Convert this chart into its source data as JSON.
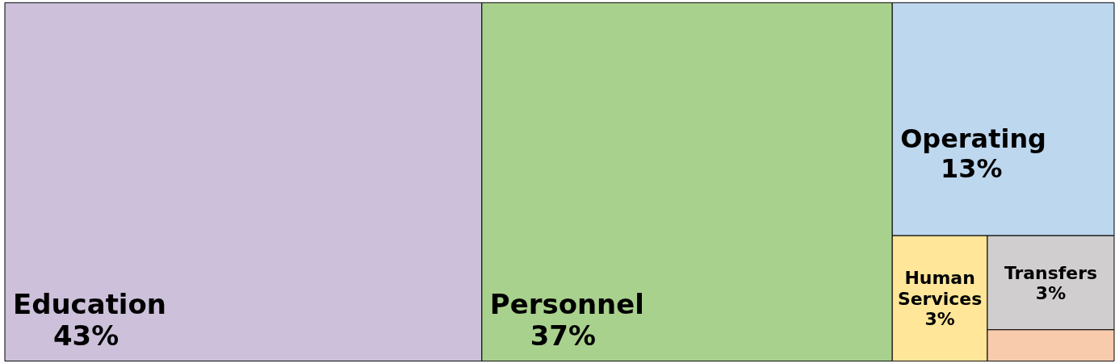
{
  "chart_data": {
    "type": "other",
    "categories": [
      "Education",
      "Personnel",
      "Operating",
      "Human Services",
      "Transfers",
      null
    ],
    "values": [
      43,
      37,
      13,
      3,
      3,
      null
    ],
    "value_labels": [
      "43%",
      "37%",
      "13%",
      "3%",
      "3%",
      null
    ],
    "colors": [
      "#ccc0da",
      "#a9d18e",
      "#bdd7ee",
      "#ffe699",
      "#d0cece",
      "#f8cbad"
    ]
  }
}
